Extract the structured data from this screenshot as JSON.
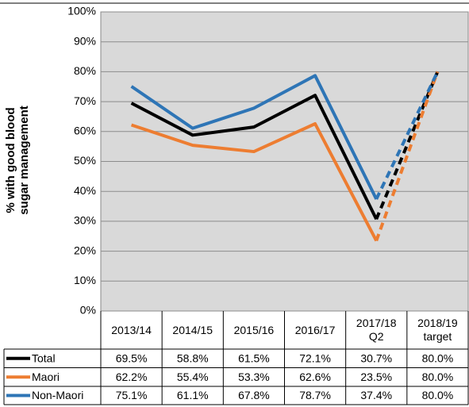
{
  "chart_data": {
    "type": "line",
    "y_label": "% with good blood sugar management",
    "categories": [
      "2013/14",
      "2014/15",
      "2015/16",
      "2016/17",
      "2017/18 Q2",
      "2018/19 target"
    ],
    "series": [
      {
        "name": "Total",
        "color": "#000000",
        "values": [
          69.5,
          58.8,
          61.5,
          72.1,
          30.7,
          80.0
        ],
        "value_labels": [
          "69.5%",
          "58.8%",
          "61.5%",
          "72.1%",
          "30.7%",
          "80.0%"
        ]
      },
      {
        "name": "Maori",
        "color": "#ed7d31",
        "values": [
          62.2,
          55.4,
          53.3,
          62.6,
          23.5,
          80.0
        ],
        "value_labels": [
          "62.2%",
          "55.4%",
          "53.3%",
          "62.6%",
          "23.5%",
          "80.0%"
        ]
      },
      {
        "name": "Non-Maori",
        "color": "#2e75b6",
        "values": [
          75.1,
          61.1,
          67.8,
          78.7,
          37.4,
          80.0
        ],
        "value_labels": [
          "75.1%",
          "61.1%",
          "67.8%",
          "78.7%",
          "37.4%",
          "80.0%"
        ]
      }
    ],
    "dashed_from": 4,
    "ylim": [
      0,
      100
    ],
    "yticks": [
      {
        "value": 0,
        "label": "0%"
      },
      {
        "value": 10,
        "label": "10%"
      },
      {
        "value": 20,
        "label": "20%"
      },
      {
        "value": 30,
        "label": "30%"
      },
      {
        "value": 40,
        "label": "40%"
      },
      {
        "value": 50,
        "label": "50%"
      },
      {
        "value": 60,
        "label": "60%"
      },
      {
        "value": 70,
        "label": "70%"
      },
      {
        "value": 80,
        "label": "80%"
      },
      {
        "value": 90,
        "label": "90%"
      },
      {
        "value": 100,
        "label": "100%"
      }
    ],
    "grid": true,
    "data_table": true
  }
}
